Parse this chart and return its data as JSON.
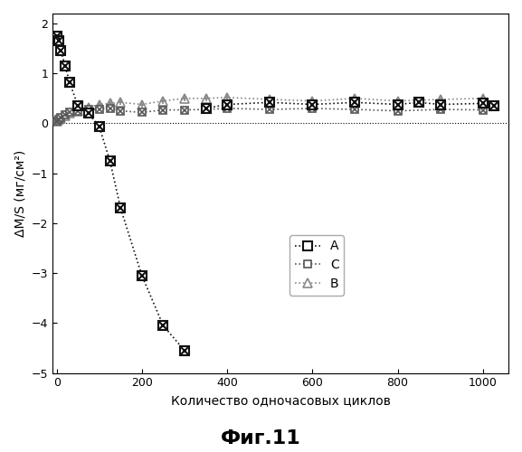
{
  "title": "Фиг.11",
  "xlabel": "Количество одночасовых циклов",
  "ylabel": "ΔM/S (мг/см²)",
  "xlim": [
    -10,
    1060
  ],
  "ylim": [
    -5,
    2.2
  ],
  "yticks": [
    -5,
    -4,
    -3,
    -2,
    -1,
    0,
    1,
    2
  ],
  "xticks": [
    0,
    200,
    400,
    600,
    800,
    1000
  ],
  "series_A": {
    "label": "A",
    "color": "#111111",
    "x": [
      1,
      5,
      10,
      20,
      30,
      50,
      75,
      100,
      125,
      150,
      200,
      250,
      300,
      350,
      400,
      500,
      600,
      700,
      800,
      850,
      900,
      1000,
      1025
    ],
    "y": [
      1.75,
      1.65,
      1.45,
      1.15,
      0.83,
      0.35,
      0.2,
      -0.07,
      -0.75,
      -1.7,
      -3.05,
      -4.05,
      -4.55,
      0.3,
      0.38,
      0.42,
      0.38,
      0.42,
      0.38,
      0.42,
      0.38,
      0.4,
      0.35
    ]
  },
  "series_C": {
    "label": "C",
    "color": "#555555",
    "x": [
      1,
      5,
      10,
      20,
      30,
      50,
      75,
      100,
      125,
      150,
      200,
      250,
      300,
      350,
      400,
      500,
      600,
      700,
      800,
      900,
      1000
    ],
    "y": [
      0.05,
      0.08,
      0.12,
      0.18,
      0.22,
      0.25,
      0.28,
      0.28,
      0.3,
      0.25,
      0.22,
      0.27,
      0.27,
      0.28,
      0.3,
      0.28,
      0.3,
      0.28,
      0.25,
      0.28,
      0.27
    ]
  },
  "series_B": {
    "label": "B",
    "color": "#888888",
    "x": [
      1,
      5,
      10,
      20,
      30,
      50,
      75,
      100,
      125,
      150,
      200,
      250,
      300,
      350,
      400,
      500,
      600,
      700,
      800,
      900,
      1000
    ],
    "y": [
      0.05,
      0.08,
      0.1,
      0.15,
      0.2,
      0.25,
      0.32,
      0.38,
      0.4,
      0.42,
      0.38,
      0.45,
      0.5,
      0.5,
      0.52,
      0.48,
      0.45,
      0.5,
      0.45,
      0.48,
      0.5
    ]
  },
  "background_color": "#ffffff"
}
